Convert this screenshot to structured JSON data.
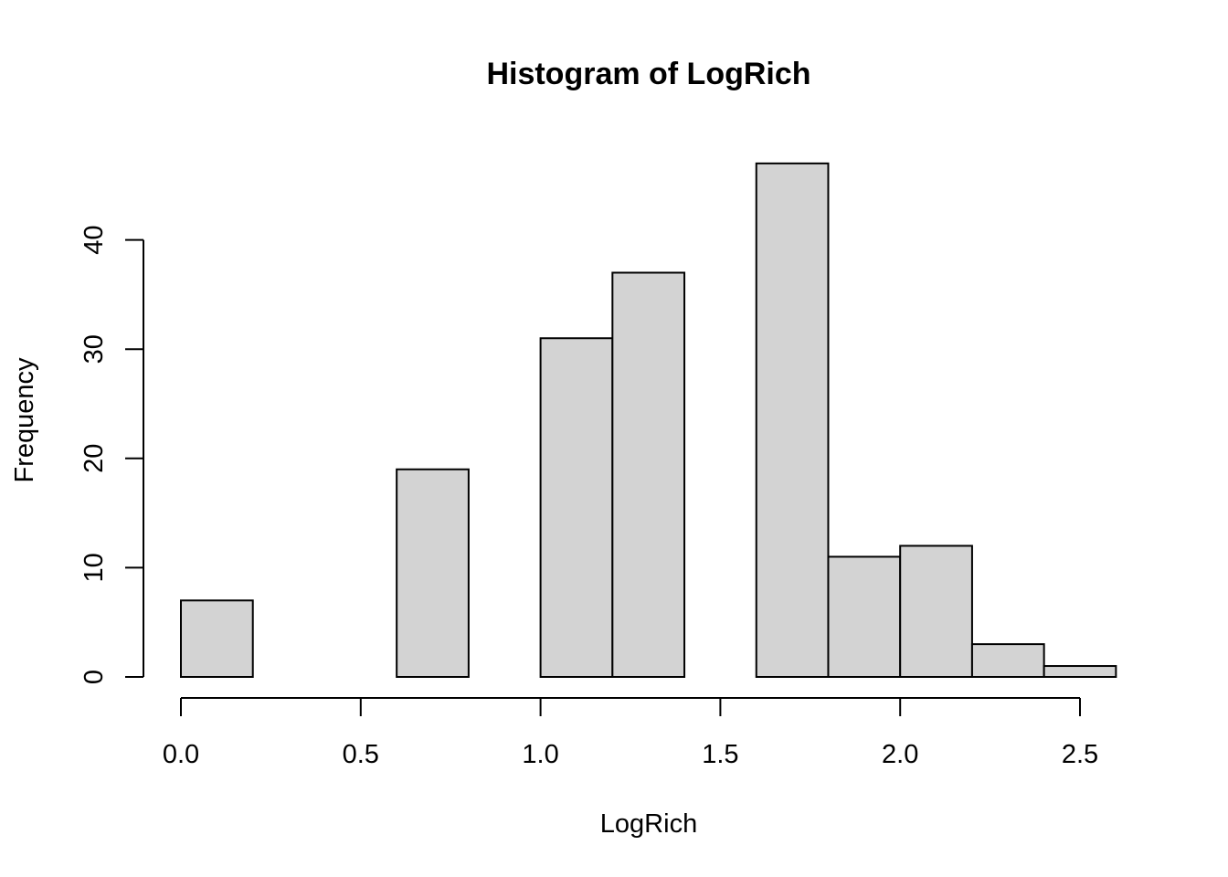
{
  "chart_data": {
    "type": "bar",
    "title": "Histogram of LogRich",
    "xlabel": "LogRich",
    "ylabel": "Frequency",
    "bins": [
      {
        "start": 0.0,
        "end": 0.2,
        "count": 7
      },
      {
        "start": 0.2,
        "end": 0.4,
        "count": 0
      },
      {
        "start": 0.4,
        "end": 0.6,
        "count": 0
      },
      {
        "start": 0.6,
        "end": 0.8,
        "count": 19
      },
      {
        "start": 0.8,
        "end": 1.0,
        "count": 0
      },
      {
        "start": 1.0,
        "end": 1.2,
        "count": 31
      },
      {
        "start": 1.2,
        "end": 1.4,
        "count": 37
      },
      {
        "start": 1.4,
        "end": 1.6,
        "count": 0
      },
      {
        "start": 1.6,
        "end": 1.8,
        "count": 47
      },
      {
        "start": 1.8,
        "end": 2.0,
        "count": 11
      },
      {
        "start": 2.0,
        "end": 2.2,
        "count": 12
      },
      {
        "start": 2.2,
        "end": 2.4,
        "count": 3
      },
      {
        "start": 2.4,
        "end": 2.6,
        "count": 1
      }
    ],
    "xticks": [
      "0.0",
      "0.5",
      "1.0",
      "1.5",
      "2.0",
      "2.5"
    ],
    "yticks": [
      "0",
      "10",
      "20",
      "30",
      "40"
    ],
    "xlim": [
      0.0,
      2.6
    ],
    "ylim": [
      0,
      47
    ],
    "bar_fill": "#d3d3d3",
    "bar_stroke": "#000000",
    "grid": false,
    "legend": "none"
  }
}
